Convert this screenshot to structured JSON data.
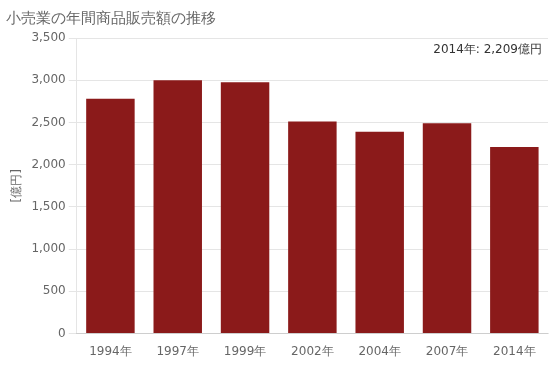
{
  "chart_data": {
    "type": "bar",
    "title": "小売業の年間商品販売額の推移",
    "ylabel": "[億円]",
    "annotation": "2014年: 2,209億円",
    "categories": [
      "1994年",
      "1997年",
      "1999年",
      "2002年",
      "2004年",
      "2007年",
      "2014年"
    ],
    "values": [
      2780,
      3000,
      2975,
      2510,
      2390,
      2490,
      2209
    ],
    "color": "#8B1A1A",
    "ylim": [
      0,
      3500
    ],
    "yticks": [
      0,
      500,
      {
        "value": 1000,
        "label": "1,000"
      },
      {
        "value": 1500,
        "label": "1,500"
      },
      {
        "value": 2000,
        "label": "2,000"
      },
      {
        "value": 2500,
        "label": "2,500"
      },
      {
        "value": 3000,
        "label": "3,000"
      },
      {
        "value": 3500,
        "label": "3,500"
      }
    ],
    "grid": true
  }
}
